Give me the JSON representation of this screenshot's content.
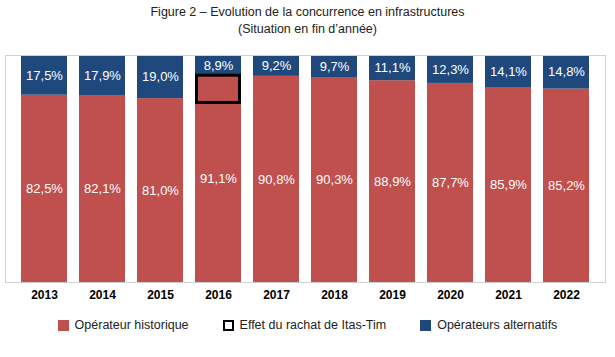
{
  "chart_data": {
    "type": "bar",
    "title": "Figure 2 – Evolution de la concurrence en infrastructures",
    "subtitle": "(Situation en fin d’année)",
    "categories": [
      "2013",
      "2014",
      "2015",
      "2016",
      "2017",
      "2018",
      "2019",
      "2020",
      "2021",
      "2022"
    ],
    "stacked": true,
    "data_labels": true,
    "tick_labels": "x",
    "legend": "bottom",
    "ylim": [
      0,
      100
    ],
    "yticks": [],
    "series": [
      {
        "name": "Opérateur historique",
        "color": "#c0504d",
        "values": [
          82.5,
          82.1,
          81.0,
          91.1,
          90.8,
          90.3,
          88.9,
          87.7,
          85.9,
          85.2
        ],
        "value_labels": [
          "82,5%",
          "82,1%",
          "81,0%",
          "91,1%",
          "90,8%",
          "90,3%",
          "88,9%",
          "87,7%",
          "85,9%",
          "85,2%"
        ]
      },
      {
        "name": "Effet du rachat de Itas-Tim",
        "color": "#000000",
        "type": "outline",
        "values": [
          null,
          null,
          null,
          12,
          null,
          null,
          null,
          null,
          null,
          null
        ]
      },
      {
        "name": "Opérateurs alternatifs",
        "color": "#1f497d",
        "values": [
          17.5,
          17.9,
          19.0,
          8.9,
          9.2,
          9.7,
          11.1,
          12.3,
          14.1,
          14.8
        ],
        "value_labels": [
          "17,5%",
          "17,9%",
          "19,0%",
          "8,9%",
          "9,2%",
          "9,7%",
          "11,1%",
          "12,3%",
          "14,1%",
          "14,8%"
        ]
      }
    ]
  }
}
